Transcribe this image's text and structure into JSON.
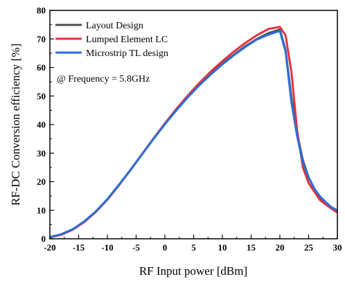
{
  "chart_data": {
    "type": "line",
    "title": "",
    "xlabel": "RF Input power [dBm]",
    "ylabel": "RF-DC Conversion efficiency [%]",
    "xlim": [
      -20,
      30
    ],
    "ylim": [
      0,
      80
    ],
    "xticks": [
      -20,
      -15,
      -10,
      -5,
      0,
      5,
      10,
      15,
      20,
      25,
      30
    ],
    "yticks": [
      0,
      10,
      20,
      30,
      40,
      50,
      60,
      70,
      80
    ],
    "grid": false,
    "legend_position": "top-left",
    "annotation": "@ Frequency = 5.8GHz",
    "series": [
      {
        "name": "Layout Design",
        "color": "#4d4d4d",
        "x": [
          -20,
          -18,
          -16,
          -14,
          -12,
          -10,
          -8,
          -6,
          -4,
          -2,
          0,
          2,
          4,
          6,
          8,
          10,
          12,
          14,
          16,
          18,
          20,
          21,
          22,
          23,
          24,
          25,
          26,
          27,
          28,
          29,
          30
        ],
        "y": [
          0.5,
          1.5,
          3.3,
          6.0,
          9.5,
          13.8,
          18.8,
          24.0,
          29.5,
          35.0,
          40.2,
          45.2,
          49.8,
          54.0,
          57.8,
          61.3,
          64.5,
          67.5,
          70.0,
          72.0,
          73.3,
          66.0,
          49.5,
          37.0,
          27.5,
          21.5,
          17.5,
          14.5,
          12.5,
          10.8,
          9.8
        ]
      },
      {
        "name": "Lumped Element LC",
        "color": "#e5313d",
        "x": [
          -20,
          -18,
          -16,
          -14,
          -12,
          -10,
          -8,
          -6,
          -4,
          -2,
          0,
          2,
          4,
          6,
          8,
          10,
          12,
          14,
          16,
          18,
          20,
          21,
          22,
          23,
          24,
          25,
          26,
          27,
          28,
          29,
          30
        ],
        "y": [
          0.5,
          1.4,
          3.2,
          5.9,
          9.4,
          13.7,
          18.7,
          24.1,
          29.6,
          35.1,
          40.4,
          45.5,
          50.2,
          54.6,
          58.6,
          62.2,
          65.6,
          68.6,
          71.3,
          73.5,
          74.2,
          71.2,
          58.5,
          38.0,
          25.0,
          19.5,
          16.5,
          13.5,
          12.0,
          10.5,
          9.2
        ]
      },
      {
        "name": "Microstrip TL design",
        "color": "#2a6fd6",
        "x": [
          -20,
          -18,
          -16,
          -14,
          -12,
          -10,
          -8,
          -6,
          -4,
          -2,
          0,
          2,
          4,
          6,
          8,
          10,
          12,
          14,
          16,
          18,
          20,
          21,
          22,
          23,
          24,
          25,
          26,
          27,
          28,
          29,
          30
        ],
        "y": [
          0.6,
          1.6,
          3.4,
          6.1,
          9.6,
          13.9,
          18.9,
          24.1,
          29.5,
          34.9,
          40.1,
          45.0,
          49.6,
          53.8,
          57.6,
          61.1,
          64.3,
          67.2,
          69.8,
          71.5,
          72.8,
          65.5,
          48.0,
          36.0,
          26.5,
          21.5,
          17.5,
          14.8,
          12.8,
          11.0,
          10.0
        ]
      }
    ]
  }
}
